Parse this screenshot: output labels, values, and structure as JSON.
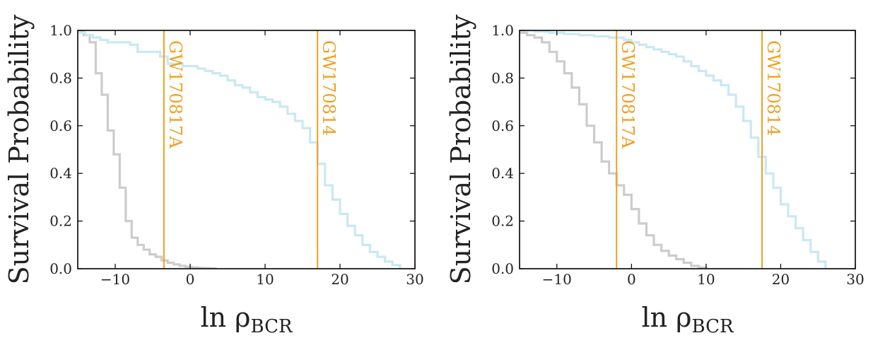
{
  "colors": {
    "background_series": "#cccccc",
    "signal_series": "#c9e8f3",
    "event_line": "#f0a020"
  },
  "chart_data": [
    {
      "type": "line",
      "step": true,
      "title": "",
      "xlabel": "ln ρ",
      "xlabel_subscript": "BCR",
      "ylabel": "Survival Probability",
      "xlim": [
        -15,
        30
      ],
      "ylim": [
        0,
        1
      ],
      "xticks": [
        -10,
        0,
        10,
        20,
        30
      ],
      "yticks": [
        0.0,
        0.2,
        0.4,
        0.6,
        0.8,
        1.0
      ],
      "xtick_labels": [
        "−10",
        "0",
        "10",
        "20",
        "30"
      ],
      "ytick_labels": [
        "0.0",
        "0.2",
        "0.4",
        "0.6",
        "0.8",
        "1.0"
      ],
      "series": [
        {
          "color_key": "background_series",
          "x": [
            -15,
            -14.2,
            -13.4,
            -12.6,
            -11.8,
            -11.0,
            -10.2,
            -9.4,
            -8.6,
            -7.8,
            -7.0,
            -6.2,
            -5.4,
            -4.6,
            -3.8,
            -3.0,
            -2.2,
            -1.4,
            -0.6,
            0.2,
            1.0,
            1.8,
            2.6,
            3.4
          ],
          "y": [
            1.0,
            0.98,
            0.95,
            0.82,
            0.73,
            0.58,
            0.48,
            0.34,
            0.2,
            0.13,
            0.1,
            0.08,
            0.06,
            0.05,
            0.035,
            0.025,
            0.018,
            0.012,
            0.008,
            0.005,
            0.003,
            0.002,
            0.001,
            0.0
          ]
        },
        {
          "color_key": "signal_series",
          "x": [
            -15,
            -14,
            -13,
            -12,
            -11,
            -10,
            -9,
            -8,
            -7,
            -6,
            -5,
            -4,
            -3,
            -2,
            -1,
            0,
            1,
            2,
            3,
            4,
            5,
            6,
            7,
            8,
            9,
            10,
            11,
            12,
            13,
            14,
            15,
            16,
            17,
            18,
            19,
            20,
            21,
            22,
            23,
            24,
            25,
            26,
            27,
            28
          ],
          "y": [
            0.99,
            0.98,
            0.97,
            0.96,
            0.95,
            0.95,
            0.95,
            0.94,
            0.91,
            0.91,
            0.91,
            0.89,
            0.86,
            0.86,
            0.85,
            0.85,
            0.84,
            0.83,
            0.82,
            0.81,
            0.79,
            0.77,
            0.76,
            0.74,
            0.72,
            0.71,
            0.7,
            0.68,
            0.65,
            0.62,
            0.59,
            0.53,
            0.44,
            0.35,
            0.29,
            0.23,
            0.18,
            0.14,
            0.1,
            0.07,
            0.05,
            0.03,
            0.015,
            0.0
          ]
        }
      ],
      "events": [
        {
          "label": "GW170817A",
          "x": -3.5
        },
        {
          "label": "GW170814",
          "x": 17.0
        }
      ]
    },
    {
      "type": "line",
      "step": true,
      "title": "",
      "xlabel": "ln ρ",
      "xlabel_subscript": "BCR",
      "ylabel": "Survival Probability",
      "xlim": [
        -15,
        30
      ],
      "ylim": [
        0,
        1
      ],
      "xticks": [
        -10,
        0,
        10,
        20,
        30
      ],
      "yticks": [
        0.0,
        0.2,
        0.4,
        0.6,
        0.8,
        1.0
      ],
      "xtick_labels": [
        "−10",
        "0",
        "10",
        "20",
        "30"
      ],
      "ytick_labels": [
        "0.0",
        "0.2",
        "0.4",
        "0.6",
        "0.8",
        "1.0"
      ],
      "series": [
        {
          "color_key": "background_series",
          "x": [
            -15,
            -14,
            -13,
            -12,
            -11,
            -10,
            -9,
            -8,
            -7,
            -6,
            -5,
            -4,
            -3,
            -2,
            -1,
            0,
            1,
            2,
            3,
            4,
            5,
            6,
            7,
            8,
            9,
            10
          ],
          "y": [
            0.99,
            0.98,
            0.97,
            0.95,
            0.91,
            0.87,
            0.82,
            0.76,
            0.69,
            0.6,
            0.53,
            0.45,
            0.4,
            0.35,
            0.31,
            0.25,
            0.19,
            0.14,
            0.1,
            0.075,
            0.055,
            0.04,
            0.025,
            0.012,
            0.005,
            0.0
          ]
        },
        {
          "color_key": "signal_series",
          "x": [
            -15,
            -13,
            -11,
            -9,
            -7,
            -5,
            -3,
            -1,
            0,
            1,
            2,
            3,
            4,
            5,
            6,
            7,
            8,
            9,
            10,
            11,
            12,
            13,
            14,
            15,
            16,
            17,
            18,
            19,
            20,
            21,
            22,
            23,
            24,
            25,
            26
          ],
          "y": [
            1.0,
            0.995,
            0.99,
            0.985,
            0.98,
            0.975,
            0.97,
            0.96,
            0.95,
            0.94,
            0.93,
            0.92,
            0.91,
            0.9,
            0.89,
            0.87,
            0.85,
            0.83,
            0.81,
            0.79,
            0.77,
            0.73,
            0.68,
            0.62,
            0.55,
            0.47,
            0.4,
            0.34,
            0.27,
            0.22,
            0.17,
            0.12,
            0.07,
            0.03,
            0.0
          ]
        }
      ],
      "events": [
        {
          "label": "GW170817A",
          "x": -2.0
        },
        {
          "label": "GW170814",
          "x": 17.5
        }
      ]
    }
  ]
}
